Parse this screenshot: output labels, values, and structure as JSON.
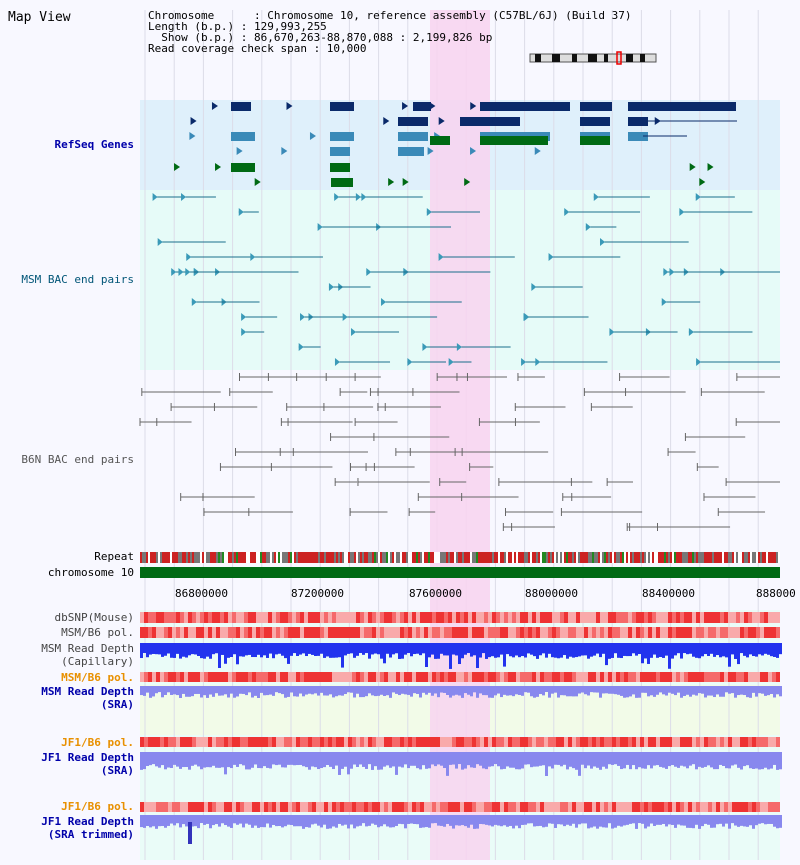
{
  "view_title": "Map View",
  "header": {
    "chromosome_line": "Chromosome      : Chromosome 10, reference assembly (C57BL/6J) (Build 37)",
    "length_line": "Length (b.p.) : 129,993,255",
    "show_line": "Show (b.p.) : 86,670,263-88,870,088 : 2,199,826 bp",
    "coverage_line": "Read coverage check span : 10,000"
  },
  "tracks": {
    "refseq": "RefSeq Genes",
    "msm_bac": "MSM BAC end pairs",
    "b6n_bac": "B6N BAC end pairs",
    "repeat": "Repeat",
    "chromosome": "chromosome 10",
    "dbsnp": "dbSNP(Mouse)",
    "msm_b6_pol_1": "MSM/B6 pol.",
    "msm_depth_cap_1": "MSM Read Depth",
    "msm_depth_cap_2": "(Capillary)",
    "msm_b6_pol_2": "MSM/B6 pol.",
    "msm_depth_sra_1": "MSM Read Depth",
    "msm_depth_sra_2": "(SRA)",
    "jf1_pol_1": "JF1/B6 pol.",
    "jf1_depth_sra_1": "JF1 Read Depth",
    "jf1_depth_sra_2": "(SRA)",
    "jf1_pol_2": "JF1/B6 pol.",
    "jf1_trim_1": "JF1 Read Depth",
    "jf1_trim_2": "(SRA trimmed)"
  },
  "axis_ticks": [
    "86800000",
    "87200000",
    "87600000",
    "88000000",
    "88400000",
    "888000"
  ],
  "colors": {
    "refseq_bg": "#dff0fb",
    "msm_bg": "#e6fbf8",
    "highlight": "#f8d4f0",
    "refseq_label": "#0000aa",
    "msm_label": "#005577",
    "b6n_label": "#555555",
    "gene_dark": "#0a2a6a",
    "gene_mid": "#3a8ab8",
    "gene_green": "#006a14",
    "pol_red": "#ee3333",
    "depth_blue": "#2233ee",
    "depth_light": "#8888ee",
    "orange_label": "#e89000"
  }
}
